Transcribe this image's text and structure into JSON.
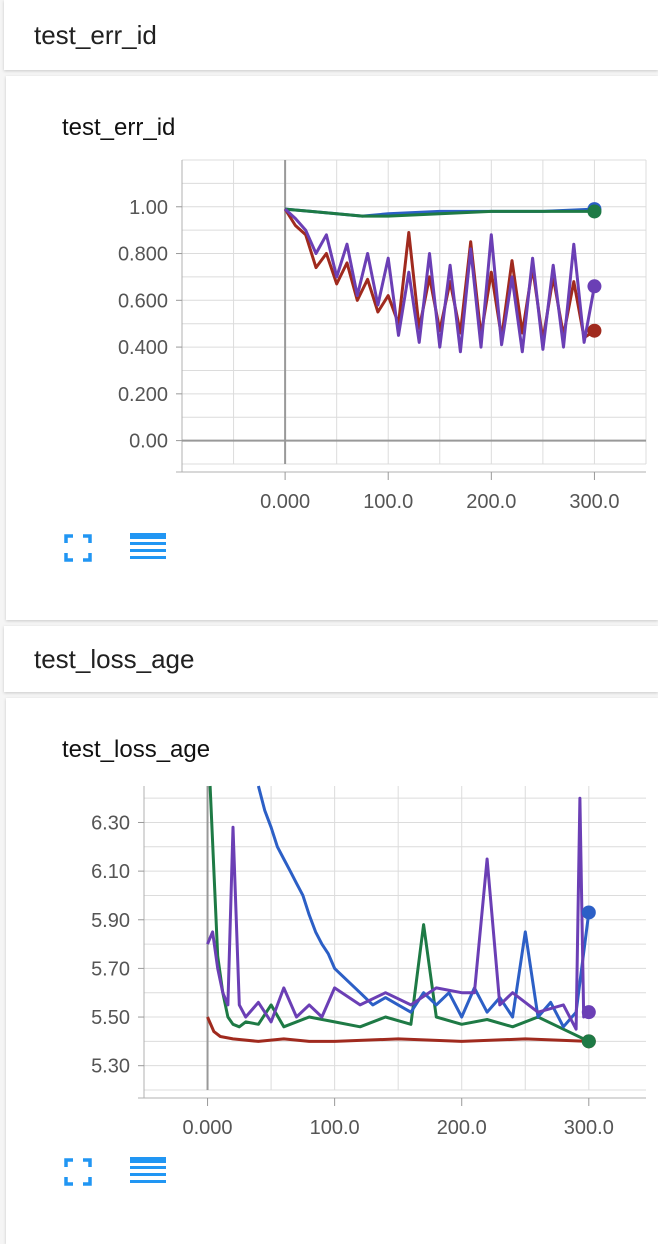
{
  "sections": [
    {
      "header": "test_err_id",
      "card_title": "test_err_id",
      "toolbar": {
        "fit_icon": "fit-domain-icon",
        "data_icon": "toggle-data-table-icon"
      }
    },
    {
      "header": "test_loss_age",
      "card_title": "test_loss_age",
      "toolbar": {
        "fit_icon": "fit-domain-icon",
        "data_icon": "toggle-data-table-icon"
      }
    }
  ],
  "chart_data": [
    {
      "type": "line",
      "title": "test_err_id",
      "xlim": [
        -100,
        350
      ],
      "ylim": [
        -0.1,
        1.2
      ],
      "xticks": [
        0,
        100,
        200,
        300
      ],
      "xtick_labels": [
        "0.000",
        "100.0",
        "200.0",
        "300.0"
      ],
      "yticks": [
        0,
        0.2,
        0.4,
        0.6,
        0.8,
        1.0
      ],
      "ytick_labels": [
        "0.00",
        "0.200",
        "0.400",
        "0.600",
        "0.800",
        "1.00"
      ],
      "grid": true,
      "series": [
        {
          "color": "#2c5fc6",
          "x": [
            0,
            25,
            50,
            75,
            100,
            150,
            200,
            250,
            300
          ],
          "y": [
            0.99,
            0.98,
            0.97,
            0.96,
            0.97,
            0.98,
            0.98,
            0.98,
            0.99
          ]
        },
        {
          "color": "#1e7a45",
          "x": [
            0,
            25,
            50,
            75,
            100,
            150,
            200,
            250,
            300
          ],
          "y": [
            0.99,
            0.98,
            0.97,
            0.96,
            0.96,
            0.97,
            0.98,
            0.98,
            0.98
          ]
        },
        {
          "color": "#a02a1e",
          "x": [
            0,
            10,
            20,
            30,
            40,
            50,
            60,
            70,
            80,
            90,
            100,
            110,
            120,
            130,
            140,
            150,
            160,
            170,
            180,
            190,
            200,
            210,
            220,
            230,
            240,
            250,
            260,
            270,
            280,
            290,
            300
          ],
          "y": [
            0.99,
            0.92,
            0.88,
            0.74,
            0.8,
            0.67,
            0.76,
            0.6,
            0.69,
            0.55,
            0.62,
            0.5,
            0.89,
            0.48,
            0.7,
            0.47,
            0.68,
            0.46,
            0.85,
            0.45,
            0.72,
            0.44,
            0.77,
            0.46,
            0.74,
            0.43,
            0.7,
            0.45,
            0.68,
            0.44,
            0.47
          ]
        },
        {
          "color": "#6b3fb5",
          "x": [
            0,
            10,
            20,
            30,
            40,
            50,
            60,
            70,
            80,
            90,
            100,
            110,
            120,
            130,
            140,
            150,
            160,
            170,
            180,
            190,
            200,
            210,
            220,
            230,
            240,
            250,
            260,
            270,
            280,
            290,
            300
          ],
          "y": [
            0.99,
            0.95,
            0.9,
            0.8,
            0.88,
            0.7,
            0.84,
            0.62,
            0.8,
            0.58,
            0.78,
            0.45,
            0.72,
            0.42,
            0.8,
            0.4,
            0.75,
            0.38,
            0.82,
            0.4,
            0.88,
            0.41,
            0.7,
            0.38,
            0.78,
            0.39,
            0.75,
            0.4,
            0.84,
            0.42,
            0.66
          ]
        }
      ]
    },
    {
      "type": "line",
      "title": "test_loss_age",
      "xlim": [
        -50,
        345
      ],
      "ylim": [
        5.2,
        6.45
      ],
      "xticks": [
        0,
        100,
        200,
        300
      ],
      "xtick_labels": [
        "0.000",
        "100.0",
        "200.0",
        "300.0"
      ],
      "yticks": [
        5.3,
        5.5,
        5.7,
        5.9,
        6.1,
        6.3
      ],
      "ytick_labels": [
        "5.30",
        "5.50",
        "5.70",
        "5.90",
        "6.10",
        "6.30"
      ],
      "grid": true,
      "series": [
        {
          "color": "#a02a1e",
          "x": [
            0,
            5,
            10,
            20,
            40,
            60,
            80,
            100,
            150,
            200,
            250,
            300
          ],
          "y": [
            5.5,
            5.44,
            5.42,
            5.41,
            5.4,
            5.41,
            5.4,
            5.4,
            5.41,
            5.4,
            5.41,
            5.4
          ]
        },
        {
          "color": "#1e7a45",
          "x": [
            2,
            5,
            8,
            12,
            16,
            20,
            25,
            30,
            40,
            50,
            60,
            80,
            100,
            120,
            140,
            160,
            170,
            180,
            200,
            220,
            240,
            260,
            280,
            300
          ],
          "y": [
            6.45,
            6.1,
            5.75,
            5.6,
            5.5,
            5.47,
            5.46,
            5.48,
            5.47,
            5.55,
            5.46,
            5.5,
            5.48,
            5.46,
            5.5,
            5.47,
            5.88,
            5.5,
            5.47,
            5.49,
            5.46,
            5.5,
            5.45,
            5.4
          ]
        },
        {
          "color": "#2c5fc6",
          "x": [
            40,
            45,
            50,
            55,
            60,
            65,
            70,
            75,
            80,
            85,
            90,
            95,
            100,
            110,
            120,
            130,
            140,
            150,
            160,
            170,
            180,
            190,
            200,
            210,
            220,
            230,
            240,
            250,
            260,
            270,
            280,
            290,
            300
          ],
          "y": [
            6.45,
            6.35,
            6.28,
            6.2,
            6.15,
            6.1,
            6.05,
            6.0,
            5.92,
            5.85,
            5.8,
            5.76,
            5.7,
            5.65,
            5.6,
            5.55,
            5.58,
            5.55,
            5.52,
            5.6,
            5.55,
            5.6,
            5.5,
            5.62,
            5.52,
            5.58,
            5.5,
            5.85,
            5.5,
            5.56,
            5.46,
            5.52,
            5.93
          ]
        },
        {
          "color": "#6b3fb5",
          "x": [
            0,
            4,
            8,
            12,
            16,
            20,
            25,
            30,
            40,
            50,
            60,
            70,
            80,
            90,
            100,
            120,
            140,
            160,
            180,
            200,
            210,
            220,
            230,
            240,
            260,
            280,
            290,
            293,
            296,
            300
          ],
          "y": [
            5.8,
            5.85,
            5.7,
            5.6,
            5.55,
            6.28,
            5.55,
            5.5,
            5.56,
            5.48,
            5.62,
            5.5,
            5.55,
            5.5,
            5.62,
            5.55,
            5.6,
            5.55,
            5.62,
            5.6,
            5.6,
            6.15,
            5.55,
            5.6,
            5.52,
            5.55,
            5.45,
            6.4,
            5.5,
            5.52
          ]
        }
      ]
    }
  ]
}
